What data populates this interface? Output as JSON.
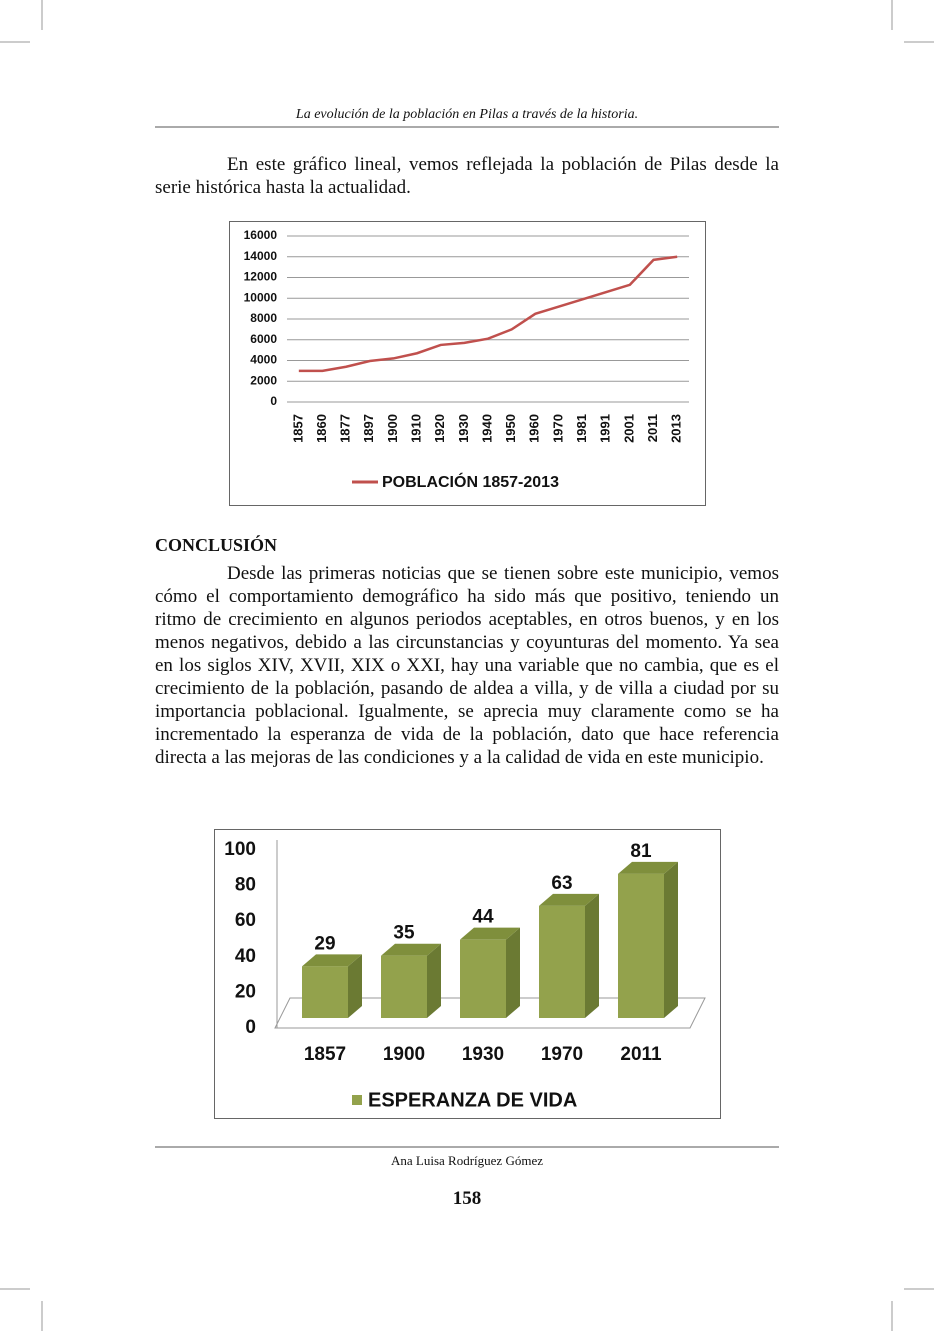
{
  "header": "La evolución de la población en Pilas a través de la historia.",
  "intro": "En este gráfico lineal, vemos reflejada la población de Pilas desde la serie histórica hasta la actualidad.",
  "conclusion_title": "CONCLUSIÓN",
  "conclusion": "Desde las primeras noticias que se tienen sobre este municipio, vemos cómo el comportamiento demográfico ha sido más que positivo, teniendo un ritmo de crecimiento en algunos periodos aceptables, en otros buenos, y en los menos negativos, debido a  las circunstancias y coyunturas del momento. Ya sea en los siglos XIV, XVII,  XIX o XXI, hay una variable que no cambia,  que es el crecimiento de la población, pasando de aldea a villa, y de villa a ciudad por su importancia poblacional. Igualmente, se aprecia muy claramente como se ha incrementado la esperanza de vida de la población, dato que hace referencia directa a las mejoras de las condiciones y a la calidad de vida en este municipio.",
  "footer": "Ana Luisa Rodríguez Gómez",
  "page_number": "158",
  "chart_data": [
    {
      "type": "line",
      "categories": [
        "1857",
        "1860",
        "1877",
        "1897",
        "1900",
        "1910",
        "1920",
        "1930",
        "1940",
        "1950",
        "1960",
        "1970",
        "1981",
        "1991",
        "2001",
        "2011",
        "2013"
      ],
      "series": [
        {
          "name": "POBLACIÓN 1857-2013",
          "color": "#c0504d",
          "values": [
            3000,
            3000,
            3400,
            3950,
            4200,
            4700,
            5500,
            5700,
            6100,
            7000,
            8500,
            9200,
            9900,
            10600,
            11300,
            13700,
            14000
          ]
        }
      ],
      "ylim": [
        0,
        16000
      ],
      "yticks": [
        0,
        2000,
        4000,
        6000,
        8000,
        10000,
        12000,
        14000,
        16000
      ],
      "grid": true,
      "legend": "bottom"
    },
    {
      "type": "bar3d",
      "categories": [
        "1857",
        "1900",
        "1930",
        "1970",
        "2011"
      ],
      "series": [
        {
          "name": "ESPERANZA DE VIDA",
          "color": "#93a24c",
          "values": [
            29,
            35,
            44,
            63,
            81
          ]
        }
      ],
      "ylim": [
        0,
        100
      ],
      "yticks": [
        0,
        20,
        40,
        60,
        80,
        100
      ],
      "grid": false,
      "legend": "bottom"
    }
  ]
}
